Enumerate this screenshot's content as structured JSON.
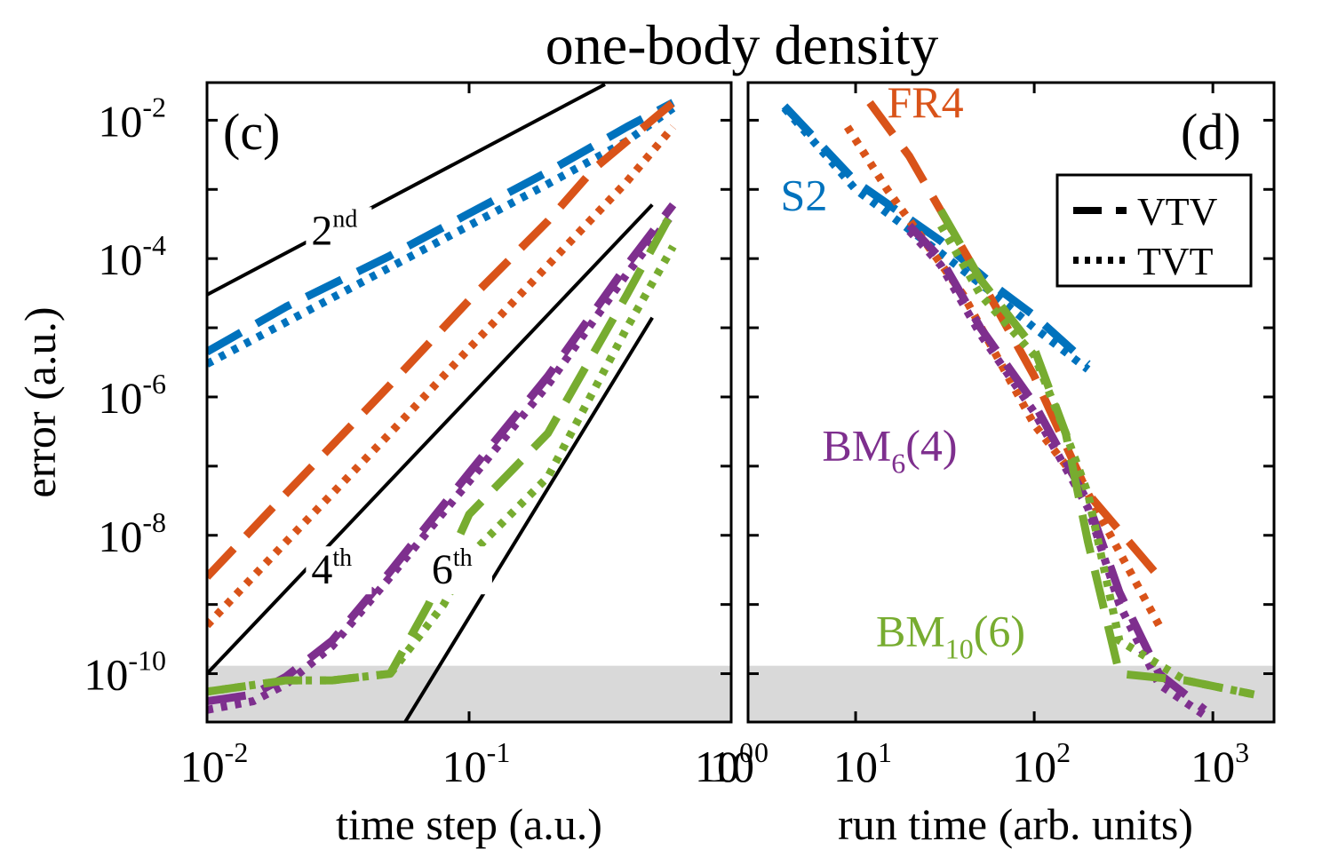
{
  "title": "one-body density",
  "chart_data": [
    {
      "panel_label": "(c)",
      "type": "line",
      "xscale": "log",
      "yscale": "log",
      "xlabel": "time step (a.u.)",
      "ylabel": "error (a.u.)",
      "xlim": [
        0.01,
        1
      ],
      "ylim": [
        2e-11,
        0.035
      ],
      "xticks": [
        {
          "value": 0.01,
          "base": "10",
          "exp": "-2"
        },
        {
          "value": 0.1,
          "base": "10",
          "exp": "-1"
        },
        {
          "value": 1,
          "base": "10",
          "exp": "0"
        }
      ],
      "yticks": [
        {
          "value": 1e-10,
          "base": "10",
          "exp": "-10"
        },
        {
          "value": 1e-08,
          "base": "10",
          "exp": "-8"
        },
        {
          "value": 1e-06,
          "base": "10",
          "exp": "-6"
        },
        {
          "value": 0.0001,
          "base": "10",
          "exp": "-4"
        },
        {
          "value": 0.01,
          "base": "10",
          "exp": "-2"
        }
      ],
      "noise_floor": 1.3e-10,
      "reference_lines": [
        {
          "order_base": "2",
          "order_sup": "nd",
          "color": "#000000",
          "points": [
            [
              0.01,
              3e-05
            ],
            [
              0.33,
              0.033
            ]
          ],
          "label_at": [
            0.025,
            0.00016
          ]
        },
        {
          "order_base": "4",
          "order_sup": "th",
          "color": "#000000",
          "points": [
            [
              0.01,
              1e-10
            ],
            [
              0.5,
              0.0006
            ]
          ],
          "label_at": [
            0.025,
            2e-09
          ]
        },
        {
          "order_base": "6",
          "order_sup": "th",
          "color": "#000000",
          "points": [
            [
              0.057,
              2e-11
            ],
            [
              0.5,
              1.4e-05
            ]
          ],
          "label_at": [
            0.072,
            2e-09
          ]
        }
      ],
      "series": [
        {
          "method": "S2",
          "scheme": "VTV",
          "style": "dashed",
          "color": "#0072BD",
          "x": [
            0.01,
            0.02,
            0.05,
            0.1,
            0.2,
            0.4,
            0.6
          ],
          "y": [
            4.5e-06,
            2e-05,
            0.00011,
            0.00045,
            0.0018,
            0.008,
            0.018
          ]
        },
        {
          "method": "S2",
          "scheme": "TVT",
          "style": "dotted",
          "color": "#0072BD",
          "x": [
            0.01,
            0.02,
            0.05,
            0.1,
            0.2,
            0.4,
            0.6
          ],
          "y": [
            3e-06,
            1.2e-05,
            7.5e-05,
            0.0003,
            0.0012,
            0.005,
            0.015
          ]
        },
        {
          "method": "FR4",
          "scheme": "VTV",
          "style": "dashed",
          "color": "#D95319",
          "x": [
            0.01,
            0.02,
            0.05,
            0.1,
            0.2,
            0.3,
            0.6
          ],
          "y": [
            2.5e-09,
            4e-08,
            1.5e-06,
            2.5e-05,
            0.00035,
            0.002,
            0.018
          ]
        },
        {
          "method": "FR4",
          "scheme": "TVT",
          "style": "dotted",
          "color": "#D95319",
          "x": [
            0.01,
            0.02,
            0.05,
            0.1,
            0.2,
            0.4,
            0.6
          ],
          "y": [
            5e-10,
            8e-09,
            3e-07,
            5e-06,
            8e-05,
            0.0013,
            0.008
          ]
        },
        {
          "method": "BM6(4)",
          "scheme": "VTV",
          "style": "dashed",
          "color": "#7E2F8E",
          "x": [
            0.01,
            0.015,
            0.02,
            0.03,
            0.05,
            0.1,
            0.2,
            0.4,
            0.6
          ],
          "y": [
            4e-11,
            5e-11,
            9e-11,
            3e-10,
            3e-09,
            8e-08,
            2e-06,
            8e-05,
            0.0006
          ]
        },
        {
          "method": "BM6(4)",
          "scheme": "TVT",
          "style": "dotted",
          "color": "#7E2F8E",
          "x": [
            0.01,
            0.015,
            0.02,
            0.03,
            0.05,
            0.1,
            0.2,
            0.4,
            0.6
          ],
          "y": [
            3e-11,
            4e-11,
            7e-11,
            2.5e-10,
            2.5e-09,
            6e-08,
            1.5e-06,
            6e-05,
            0.00045
          ]
        },
        {
          "method": "BM10(6)",
          "scheme": "VTV",
          "style": "dashed",
          "color": "#77AC30",
          "x": [
            0.01,
            0.02,
            0.03,
            0.05,
            0.07,
            0.1,
            0.2,
            0.4,
            0.6
          ],
          "y": [
            5.5e-11,
            8e-11,
            8e-11,
            1e-10,
            1e-09,
            2e-08,
            3e-07,
            3e-05,
            0.0005
          ]
        },
        {
          "method": "BM10(6)",
          "scheme": "TVT",
          "style": "dotted",
          "color": "#77AC30",
          "x": [
            0.01,
            0.02,
            0.03,
            0.05,
            0.08,
            0.1,
            0.2,
            0.4,
            0.6
          ],
          "y": [
            5.5e-11,
            8e-11,
            8e-11,
            1e-10,
            1e-09,
            5e-09,
            7e-08,
            1e-05,
            0.00015
          ]
        }
      ],
      "annotations": []
    },
    {
      "panel_label": "(d)",
      "type": "line",
      "xscale": "log",
      "yscale": "log",
      "xlabel": "run time (arb. units)",
      "ylabel": "",
      "xlim": [
        2.5,
        2200
      ],
      "ylim": [
        2e-11,
        0.035
      ],
      "xticks": [
        {
          "value": 1,
          "base": "10",
          "exp": "0"
        },
        {
          "value": 10,
          "base": "10",
          "exp": "1"
        },
        {
          "value": 100,
          "base": "10",
          "exp": "2"
        },
        {
          "value": 1000,
          "base": "10",
          "exp": "3"
        }
      ],
      "noise_floor": 1.3e-10,
      "legend": {
        "position": "top-right",
        "entries": [
          {
            "label": "VTV",
            "style": "dashed"
          },
          {
            "label": "TVT",
            "style": "dotted"
          }
        ]
      },
      "series": [
        {
          "method": "S2",
          "scheme": "VTV",
          "style": "dashed",
          "color": "#0072BD",
          "x": [
            4,
            10,
            30,
            60,
            100,
            200
          ],
          "y": [
            0.016,
            0.0013,
            0.00018,
            4e-05,
            1.5e-05,
            3e-06
          ]
        },
        {
          "method": "S2",
          "scheme": "TVT",
          "style": "dotted",
          "color": "#0072BD",
          "x": [
            4,
            10,
            30,
            60,
            100,
            200
          ],
          "y": [
            0.015,
            0.001,
            0.00012,
            3e-05,
            1e-05,
            2.5e-06
          ]
        },
        {
          "method": "FR4",
          "scheme": "VTV",
          "style": "dashed",
          "color": "#D95319",
          "x": [
            12,
            20,
            50,
            100,
            200,
            500
          ],
          "y": [
            0.018,
            0.003,
            5e-05,
            2e-06,
            4e-08,
            2.5e-09
          ]
        },
        {
          "method": "FR4",
          "scheme": "TVT",
          "style": "dotted",
          "color": "#D95319",
          "x": [
            9,
            15,
            40,
            100,
            200,
            500
          ],
          "y": [
            0.008,
            0.001,
            3e-05,
            4e-07,
            4e-08,
            5e-10
          ]
        },
        {
          "method": "BM6(4)",
          "scheme": "VTV",
          "style": "dashed",
          "color": "#7E2F8E",
          "x": [
            20,
            30,
            50,
            100,
            200,
            300,
            500,
            900
          ],
          "y": [
            0.0003,
            0.0001,
            1e-05,
            8e-07,
            3e-08,
            1.5e-09,
            1e-10,
            3e-11
          ]
        },
        {
          "method": "BM6(4)",
          "scheme": "TVT",
          "style": "dotted",
          "color": "#7E2F8E",
          "x": [
            20,
            30,
            50,
            100,
            200,
            300,
            500,
            900
          ],
          "y": [
            0.00025,
            8e-05,
            8e-06,
            6e-07,
            2.5e-08,
            1e-09,
            7e-11,
            2.5e-11
          ]
        },
        {
          "method": "BM10(6)",
          "scheme": "VTV",
          "style": "dashed",
          "color": "#77AC30",
          "x": [
            30,
            50,
            100,
            150,
            200,
            300,
            700,
            1700
          ],
          "y": [
            0.0005,
            5e-05,
            5e-06,
            3e-07,
            8e-09,
            1e-10,
            8e-11,
            5e-11
          ]
        },
        {
          "method": "BM10(6)",
          "scheme": "TVT",
          "style": "dotted",
          "color": "#77AC30",
          "x": [
            30,
            50,
            100,
            150,
            200,
            300,
            700,
            1700
          ],
          "y": [
            0.0003,
            3e-05,
            4e-06,
            3e-07,
            4e-08,
            3e-10,
            8e-11,
            5e-11
          ]
        }
      ],
      "annotations": [
        {
          "text": "FR4",
          "sub": "",
          "tail": "",
          "color": "#D95319",
          "at": [
            15,
            0.011
          ]
        },
        {
          "text": "S2",
          "sub": "",
          "tail": "",
          "color": "#0072BD",
          "at": [
            3.8,
            0.0005
          ]
        },
        {
          "text": "BM",
          "sub": "6",
          "tail": "(4)",
          "color": "#7E2F8E",
          "at": [
            6.5,
            1.2e-07
          ]
        },
        {
          "text": "BM",
          "sub": "10",
          "tail": "(6)",
          "color": "#77AC30",
          "at": [
            13,
            2.5e-10
          ]
        }
      ]
    }
  ]
}
